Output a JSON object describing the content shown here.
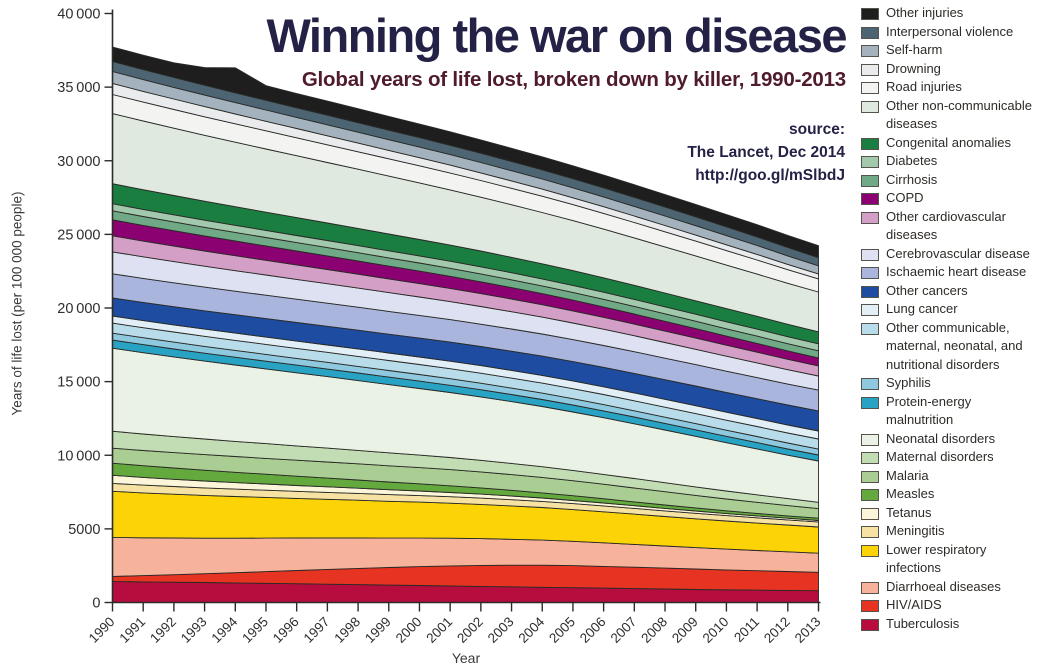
{
  "title": "Winning the war on disease",
  "subtitle": "Global years of life lost, broken down by killer, 1990-2013",
  "source": {
    "label": "source:",
    "publication": "The Lancet, Dec 2014",
    "url": "http://goo.gl/mSlbdJ"
  },
  "axes": {
    "x_label": "Year",
    "y_label": "Years of life lost (per 100 000 people)"
  },
  "colors": {
    "title_text": "#232246",
    "subtitle_text": "#4f1b2d",
    "source_text": "#232246",
    "axis_line": "#2b2b28",
    "band_outline": "#2a2a26",
    "tick_text": "#2e2e2e"
  },
  "chart_data": {
    "type": "area",
    "stacked": true,
    "title": "Winning the war on disease",
    "subtitle": "Global years of life lost, broken down by killer, 1990-2013",
    "xlabel": "Year",
    "ylabel": "Years of life lost (per 100 000 people)",
    "ylim": [
      0,
      40000
    ],
    "ytick_step": 5000,
    "grid": false,
    "legend_position": "right",
    "x": [
      1990,
      1991,
      1992,
      1993,
      1994,
      1995,
      1996,
      1997,
      1998,
      1999,
      2000,
      2001,
      2002,
      2003,
      2004,
      2005,
      2006,
      2007,
      2008,
      2009,
      2010,
      2011,
      2012,
      2013
    ],
    "series_order": "bottom-to-top; legend shown top-to-bottom is the reverse",
    "series": [
      {
        "name": "Tuberculosis",
        "color": "#b60d3e",
        "values": [
          1430,
          1400,
          1380,
          1355,
          1330,
          1305,
          1275,
          1245,
          1215,
          1185,
          1155,
          1125,
          1095,
          1065,
          1035,
          1005,
          975,
          945,
          915,
          885,
          860,
          840,
          820,
          800
        ]
      },
      {
        "name": "HIV/AIDS",
        "color": "#e73322",
        "values": [
          340,
          425,
          510,
          600,
          695,
          795,
          895,
          1000,
          1100,
          1190,
          1280,
          1360,
          1425,
          1470,
          1500,
          1500,
          1480,
          1450,
          1420,
          1390,
          1355,
          1320,
          1285,
          1250
        ]
      },
      {
        "name": "Diarrhoeal diseases",
        "color": "#f6b29b",
        "values": [
          2650,
          2570,
          2490,
          2415,
          2345,
          2275,
          2210,
          2140,
          2070,
          2000,
          1940,
          1880,
          1820,
          1760,
          1705,
          1650,
          1600,
          1550,
          1500,
          1455,
          1410,
          1370,
          1335,
          1300
        ]
      },
      {
        "name": "Lower respiratory infections",
        "color": "#fbd306",
        "values": [
          3130,
          3050,
          2975,
          2900,
          2830,
          2760,
          2690,
          2625,
          2560,
          2500,
          2440,
          2380,
          2320,
          2265,
          2210,
          2155,
          2105,
          2055,
          2005,
          1955,
          1910,
          1865,
          1820,
          1780
        ]
      },
      {
        "name": "Meningitis",
        "color": "#f6e3a4",
        "values": [
          540,
          530,
          520,
          510,
          500,
          490,
          480,
          470,
          462,
          454,
          446,
          438,
          430,
          422,
          414,
          406,
          398,
          390,
          382,
          374,
          366,
          358,
          350,
          342
        ]
      },
      {
        "name": "Tetanus",
        "color": "#fbf5da",
        "values": [
          550,
          520,
          495,
          470,
          445,
          420,
          398,
          376,
          354,
          332,
          310,
          290,
          270,
          250,
          232,
          214,
          198,
          182,
          166,
          152,
          138,
          125,
          112,
          100
        ]
      },
      {
        "name": "Measles",
        "color": "#63a93e",
        "values": [
          820,
          795,
          765,
          735,
          700,
          665,
          630,
          595,
          560,
          525,
          490,
          455,
          420,
          385,
          350,
          320,
          290,
          262,
          236,
          212,
          190,
          175,
          162,
          150
        ]
      },
      {
        "name": "Malaria",
        "color": "#a9cd92",
        "values": [
          1020,
          1032,
          1044,
          1056,
          1068,
          1078,
          1086,
          1092,
          1097,
          1100,
          1100,
          1096,
          1086,
          1070,
          1048,
          1020,
          985,
          945,
          900,
          850,
          800,
          750,
          700,
          655
        ]
      },
      {
        "name": "Maternal disorders",
        "color": "#c2ddb4",
        "values": [
          1150,
          1120,
          1090,
          1060,
          1030,
          1000,
          970,
          940,
          910,
          880,
          850,
          820,
          790,
          760,
          730,
          700,
          670,
          640,
          610,
          580,
          545,
          510,
          470,
          430
        ]
      },
      {
        "name": "Neonatal disorders",
        "color": "#eaf2e6",
        "values": [
          5640,
          5525,
          5410,
          5295,
          5185,
          5075,
          4965,
          4855,
          4745,
          4635,
          4525,
          4415,
          4305,
          4195,
          4085,
          3970,
          3850,
          3720,
          3580,
          3435,
          3280,
          3120,
          2950,
          2800
        ]
      },
      {
        "name": "Protein-energy malnutrition",
        "color": "#28a3c4",
        "values": [
          550,
          545,
          540,
          535,
          530,
          525,
          520,
          515,
          510,
          505,
          500,
          494,
          488,
          482,
          476,
          470,
          463,
          456,
          449,
          442,
          435,
          428,
          420,
          412
        ]
      },
      {
        "name": "Syphilis",
        "color": "#8fc9e0",
        "values": [
          470,
          468,
          466,
          464,
          462,
          460,
          458,
          456,
          453,
          450,
          447,
          444,
          441,
          438,
          435,
          432,
          429,
          426,
          422,
          418,
          414,
          410,
          406,
          402
        ]
      },
      {
        "name": "Other communicable, maternal, neonatal, and nutritional disorders",
        "color": "#b8dcea",
        "values": [
          685,
          684,
          683,
          682,
          681,
          680,
          680,
          680,
          680,
          680,
          680,
          680,
          680,
          680,
          680,
          680,
          680,
          680,
          680,
          680,
          680,
          680,
          680,
          680
        ]
      },
      {
        "name": "Lung cancer",
        "color": "#e3eff6",
        "values": [
          480,
          483,
          486,
          489,
          492,
          495,
          498,
          501,
          504,
          507,
          510,
          513,
          516,
          519,
          522,
          525,
          528,
          531,
          534,
          537,
          540,
          542,
          544,
          546
        ]
      },
      {
        "name": "Other cancers",
        "color": "#1d4ca0",
        "values": [
          1225,
          1231,
          1237,
          1243,
          1249,
          1255,
          1261,
          1267,
          1273,
          1279,
          1285,
          1291,
          1297,
          1303,
          1309,
          1315,
          1321,
          1327,
          1333,
          1339,
          1345,
          1350,
          1356,
          1362
        ]
      },
      {
        "name": "Ischaemic heart disease",
        "color": "#a9b5dd",
        "values": [
          1640,
          1630,
          1620,
          1610,
          1600,
          1590,
          1580,
          1570,
          1560,
          1550,
          1540,
          1530,
          1520,
          1510,
          1500,
          1490,
          1480,
          1470,
          1460,
          1450,
          1440,
          1432,
          1424,
          1416
        ]
      },
      {
        "name": "Cerebrovascular disease",
        "color": "#dde1f1",
        "values": [
          1490,
          1466,
          1442,
          1418,
          1394,
          1370,
          1346,
          1322,
          1298,
          1274,
          1250,
          1226,
          1202,
          1178,
          1154,
          1132,
          1110,
          1088,
          1066,
          1044,
          1022,
          1000,
          978,
          956
        ]
      },
      {
        "name": "Other cardiovascular diseases",
        "color": "#d49fc7",
        "values": [
          1090,
          1072,
          1054,
          1036,
          1018,
          1000,
          982,
          964,
          946,
          928,
          910,
          892,
          874,
          856,
          838,
          822,
          806,
          790,
          774,
          758,
          742,
          726,
          705,
          685
        ]
      },
      {
        "name": "COPD",
        "color": "#8c0172",
        "values": [
          1090,
          1066,
          1042,
          1018,
          994,
          970,
          946,
          922,
          898,
          874,
          850,
          826,
          802,
          778,
          754,
          732,
          710,
          688,
          666,
          644,
          622,
          598,
          572,
          548
        ]
      },
      {
        "name": "Cirrhosis",
        "color": "#6fa985",
        "values": [
          610,
          604,
          598,
          592,
          586,
          580,
          574,
          568,
          562,
          556,
          550,
          544,
          538,
          532,
          526,
          521,
          516,
          511,
          506,
          501,
          496,
          490,
          484,
          478
        ]
      },
      {
        "name": "Diabetes",
        "color": "#a3c9ad",
        "values": [
          480,
          480,
          480,
          480,
          479,
          479,
          479,
          478,
          478,
          478,
          477,
          477,
          477,
          476,
          476,
          476,
          476,
          476,
          476,
          476,
          476,
          476,
          476,
          476
        ]
      },
      {
        "name": "Congenital anomalies",
        "color": "#1b7e41",
        "values": [
          1360,
          1336,
          1312,
          1288,
          1264,
          1240,
          1216,
          1192,
          1168,
          1144,
          1120,
          1096,
          1072,
          1048,
          1024,
          1002,
          980,
          958,
          936,
          914,
          892,
          868,
          842,
          818
        ]
      },
      {
        "name": "Other non-communicable diseases",
        "color": "#dfe9e0",
        "values": [
          4760,
          4665,
          4570,
          4478,
          4386,
          4294,
          4202,
          4110,
          4020,
          3930,
          3840,
          3750,
          3660,
          3572,
          3484,
          3396,
          3308,
          3220,
          3132,
          3044,
          2956,
          2870,
          2785,
          2700
        ]
      },
      {
        "name": "Road injuries",
        "color": "#f3f4f2",
        "values": [
          1300,
          1286,
          1272,
          1258,
          1244,
          1230,
          1216,
          1202,
          1188,
          1174,
          1160,
          1146,
          1132,
          1118,
          1104,
          1086,
          1068,
          1048,
          1028,
          1008,
          985,
          958,
          925,
          890
        ]
      },
      {
        "name": "Drowning",
        "color": "#e9ebec",
        "values": [
          750,
          730,
          710,
          690,
          670,
          650,
          630,
          610,
          590,
          572,
          554,
          536,
          518,
          500,
          484,
          468,
          452,
          438,
          424,
          410,
          396,
          378,
          360,
          342
        ]
      },
      {
        "name": "Self-harm",
        "color": "#a3b2bd",
        "values": [
          810,
          801,
          792,
          783,
          774,
          765,
          756,
          747,
          738,
          729,
          720,
          711,
          702,
          693,
          684,
          675,
          666,
          657,
          648,
          639,
          625,
          605,
          580,
          550
        ]
      },
      {
        "name": "Interpersonal violence",
        "color": "#4d6472",
        "values": [
          680,
          676,
          672,
          668,
          664,
          660,
          656,
          652,
          648,
          644,
          640,
          636,
          632,
          628,
          624,
          620,
          616,
          612,
          608,
          604,
          596,
          582,
          566,
          548
        ]
      },
      {
        "name": "Other injuries",
        "color": "#1e1e1e",
        "values": [
          985,
          975,
          1000,
          1200,
          1700,
          990,
          965,
          955,
          945,
          935,
          925,
          915,
          905,
          895,
          885,
          875,
          865,
          857,
          850,
          843,
          836,
          829,
          822,
          815
        ]
      }
    ]
  }
}
